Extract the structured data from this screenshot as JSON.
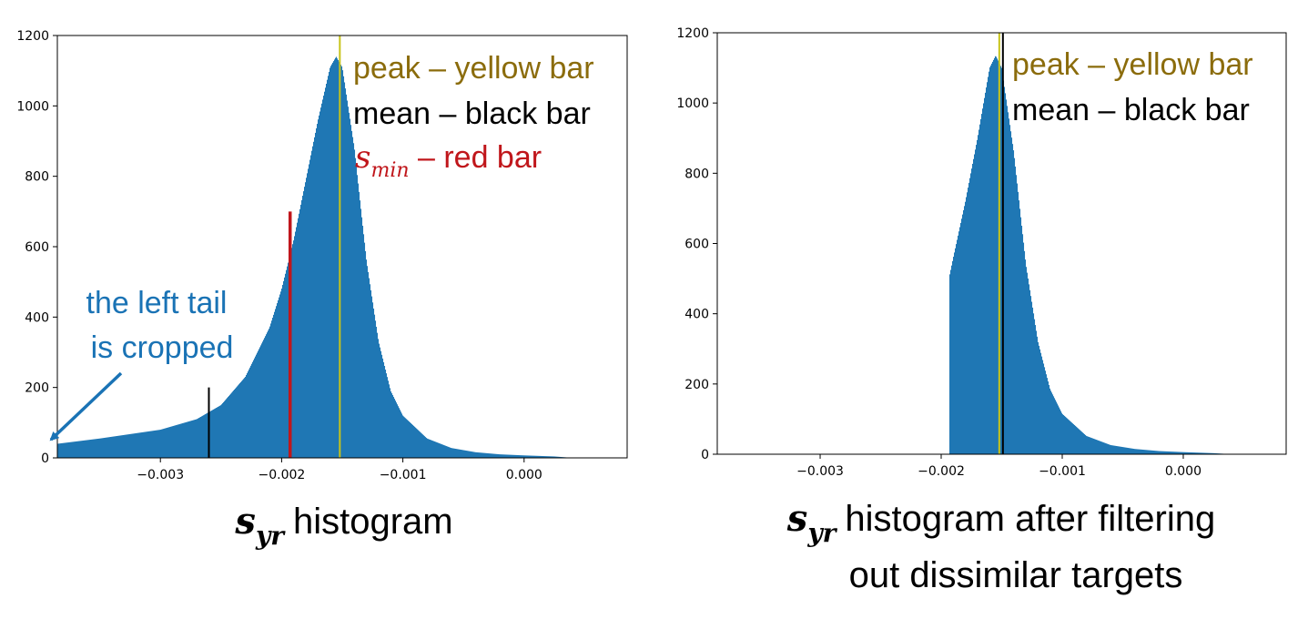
{
  "colors": {
    "bars": "#1f77b4",
    "peak": "#c8c41a",
    "mean": "#000000",
    "smin": "#c0161b",
    "peak_text": "#8b6c0c",
    "tail_text": "#1a73b5"
  },
  "chart_data": [
    {
      "type": "histogram",
      "title": "",
      "caption": {
        "symbol": "s",
        "subscript": "yr",
        "text": "histogram"
      },
      "xlim": [
        -0.00385,
        0.00085
      ],
      "ylim": [
        0,
        1200
      ],
      "xticks": [
        -0.003,
        -0.002,
        -0.001,
        0.0
      ],
      "xtick_labels": [
        "−0.003",
        "−0.002",
        "−0.001",
        "0.000"
      ],
      "yticks": [
        0,
        200,
        400,
        600,
        800,
        1000,
        1200
      ],
      "ytick_labels": [
        "0",
        "200",
        "400",
        "600",
        "800",
        "1000",
        "1200"
      ],
      "density_profile": [
        [
          -0.00385,
          40
        ],
        [
          -0.0035,
          55
        ],
        [
          -0.003,
          80
        ],
        [
          -0.0027,
          110
        ],
        [
          -0.0025,
          150
        ],
        [
          -0.0023,
          230
        ],
        [
          -0.0021,
          370
        ],
        [
          -0.002,
          480
        ],
        [
          -0.0019,
          620
        ],
        [
          -0.0018,
          790
        ],
        [
          -0.0017,
          960
        ],
        [
          -0.0016,
          1110
        ],
        [
          -0.00155,
          1140
        ],
        [
          -0.0015,
          1110
        ],
        [
          -0.0014,
          880
        ],
        [
          -0.0013,
          560
        ],
        [
          -0.0012,
          330
        ],
        [
          -0.0011,
          190
        ],
        [
          -0.001,
          120
        ],
        [
          -0.0008,
          55
        ],
        [
          -0.0006,
          28
        ],
        [
          -0.0004,
          16
        ],
        [
          -0.0002,
          10
        ],
        [
          0.0,
          7
        ],
        [
          0.00025,
          4
        ],
        [
          0.0004,
          0
        ]
      ],
      "markers": [
        {
          "name": "peak",
          "x": -0.00152,
          "height": 1200,
          "color": "#c8c41a"
        },
        {
          "name": "s_min",
          "x": -0.00193,
          "height": 700,
          "color": "#c0161b"
        },
        {
          "name": "mean",
          "x": -0.0026,
          "height": 200,
          "color": "#000000"
        }
      ],
      "legend": [
        {
          "label": "peak – yellow bar",
          "color": "#8b6c0c"
        },
        {
          "label": "mean – black bar",
          "color": "#000000"
        },
        {
          "symbol": "s",
          "subscript": "min",
          "label": " – red bar",
          "color": "#c0161b"
        }
      ],
      "annotation": {
        "lines": [
          "the left tail",
          "is cropped"
        ],
        "color": "#1a73b5"
      }
    },
    {
      "type": "histogram",
      "title": "",
      "caption": {
        "symbol": "s",
        "subscript": "yr",
        "text": "histogram after filtering",
        "text2": "out dissimilar targets"
      },
      "xlim": [
        -0.00385,
        0.00085
      ],
      "ylim": [
        0,
        1200
      ],
      "xticks": [
        -0.003,
        -0.002,
        -0.001,
        0.0
      ],
      "xtick_labels": [
        "−0.003",
        "−0.002",
        "−0.001",
        "0.000"
      ],
      "yticks": [
        0,
        200,
        400,
        600,
        800,
        1000,
        1200
      ],
      "ytick_labels": [
        "0",
        "200",
        "400",
        "600",
        "800",
        "1000",
        "1200"
      ],
      "density_profile": [
        [
          -0.00193,
          0
        ],
        [
          -0.00193,
          510
        ],
        [
          -0.0019,
          560
        ],
        [
          -0.0018,
          720
        ],
        [
          -0.0017,
          900
        ],
        [
          -0.0016,
          1100
        ],
        [
          -0.00155,
          1135
        ],
        [
          -0.0015,
          1100
        ],
        [
          -0.0014,
          860
        ],
        [
          -0.0013,
          540
        ],
        [
          -0.0012,
          320
        ],
        [
          -0.0011,
          185
        ],
        [
          -0.001,
          115
        ],
        [
          -0.0008,
          52
        ],
        [
          -0.0006,
          26
        ],
        [
          -0.0004,
          15
        ],
        [
          -0.0002,
          9
        ],
        [
          0.0,
          6
        ],
        [
          0.00025,
          3
        ],
        [
          0.0004,
          0
        ]
      ],
      "markers": [
        {
          "name": "peak",
          "x": -0.00152,
          "height": 1200,
          "color": "#c8c41a"
        },
        {
          "name": "mean",
          "x": -0.00149,
          "height": 1200,
          "color": "#000000"
        }
      ],
      "legend": [
        {
          "label": "peak – yellow bar",
          "color": "#8b6c0c"
        },
        {
          "label": "mean – black bar",
          "color": "#000000"
        }
      ]
    }
  ]
}
